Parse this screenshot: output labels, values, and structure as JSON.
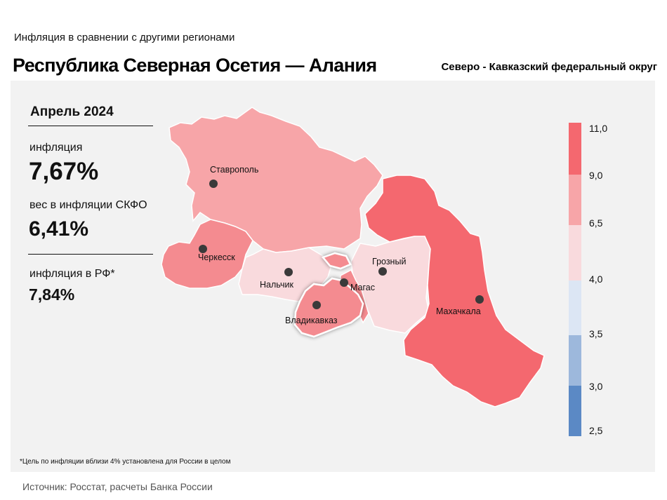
{
  "header": {
    "subtitle": "Инфляция  в сравнении  с другими  регионами",
    "title": "Республика Северная Осетия — Алания",
    "district": "Северо - Кавказский федеральный округ"
  },
  "stats": {
    "period": "Апрель 2024",
    "inflation_label": "инфляция",
    "inflation_value": "7,67%",
    "weight_label": "вес в инфляции  СКФО",
    "weight_value": "6,41%",
    "rf_label": "инфляция  в РФ*",
    "rf_value": "7,84%"
  },
  "map": {
    "cities": [
      "Ставрополь",
      "Черкесск",
      "Нальчик",
      "Грозный",
      "Магас",
      "Владикавказ",
      "Махачкала"
    ],
    "region_colors": {
      "stavropol": "#f7a5a8",
      "karachay_cherkessia": "#f48b90",
      "kabardino_balkaria": "#f9dadd",
      "north_ossetia": "#f48b90",
      "ingushetia": "#f48b90",
      "chechnya": "#f9dadd",
      "dagestan": "#f4686f"
    },
    "highlighted_region": "Республика Северная Осетия — Алания"
  },
  "legend": {
    "ticks": [
      "11,0",
      "9,0",
      "6,5",
      "4,0",
      "3,5",
      "3,0",
      "2,5"
    ],
    "colors": [
      "#f4686f",
      "#f7a5a8",
      "#f9dadd",
      "#dce6f4",
      "#9db8dc",
      "#5b89c5"
    ]
  },
  "footnote": "*Цель по инфляции вблизи 4% установлена для России в целом",
  "source": "Источник: Росстат, расчеты Банка России"
}
